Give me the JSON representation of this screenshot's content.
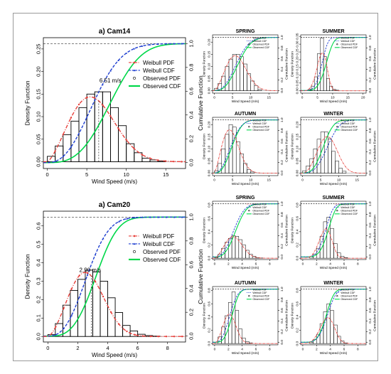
{
  "figure": {
    "border_color": "#9a9a9a"
  },
  "colors": {
    "weibull_pdf": "#e8413c",
    "weibull_cdf": "#1f3fd0",
    "observed_pdf": "#000000",
    "observed_cdf": "#00d84a",
    "bars": "#000000"
  },
  "chart_data": [
    {
      "id": "cam14",
      "type": "bar",
      "title": "a) Cam14",
      "xlabel": "Wind Speed (m/s)",
      "ylabel": "Density Function",
      "y2label": "Cumulative Function",
      "xlim": [
        -0.5,
        17.5
      ],
      "ylim": [
        -0.015,
        0.275
      ],
      "y2lim": [
        -0.05,
        1.05
      ],
      "xticks": [
        0,
        5,
        10,
        15
      ],
      "yticks": [
        0,
        0.05,
        0.1,
        0.15,
        0.2,
        0.25
      ],
      "y2ticks": [
        0,
        0.2,
        0.4,
        0.6,
        0.8,
        1.0
      ],
      "bins_x": [
        0,
        1,
        2,
        3,
        4,
        5,
        6,
        7,
        8,
        9,
        10,
        11,
        12,
        13,
        14
      ],
      "bins_y": [
        0.012,
        0.035,
        0.06,
        0.09,
        0.12,
        0.15,
        0.155,
        0.155,
        0.12,
        0.08,
        0.04,
        0.02,
        0.008,
        0.004,
        0.002
      ],
      "weibull_pdf": {
        "k": 2.4,
        "c": 6.8,
        "label": "Weibull PDF"
      },
      "weibull_cdf": {
        "k": 2.4,
        "c": 6.8,
        "label": "Weibull CDF"
      },
      "observed_cdf": {
        "k": 3.0,
        "c": 9.0,
        "label": "Observed CDF"
      },
      "observed_pdf_label": "Observed PDF",
      "annotation": {
        "text": "6.51 m/s",
        "x": 6.6,
        "y": 0.176
      },
      "mean_marker_x": 6.51,
      "dashed_line_y": 0.268,
      "legend_position": "right"
    },
    {
      "id": "cam20",
      "type": "bar",
      "title": "a) Cam20",
      "xlabel": "Wind Speed (m/s)",
      "ylabel": "Density Function",
      "y2label": "Cumulative Function",
      "xlim": [
        -0.3,
        9.2
      ],
      "ylim": [
        -0.03,
        0.68
      ],
      "y2lim": [
        -0.05,
        1.05
      ],
      "xticks": [
        0,
        2,
        4,
        6,
        8
      ],
      "yticks": [
        0,
        0.1,
        0.2,
        0.3,
        0.4,
        0.5,
        0.6
      ],
      "y2ticks": [
        0,
        0.2,
        0.4,
        0.6,
        0.8,
        1.0
      ],
      "bins_x": [
        0,
        0.5,
        1,
        1.5,
        2,
        2.5,
        3,
        3.5,
        4,
        4.5,
        5,
        5.5,
        6,
        6.5,
        7
      ],
      "bins_y": [
        0.01,
        0.07,
        0.17,
        0.25,
        0.31,
        0.36,
        0.35,
        0.3,
        0.21,
        0.13,
        0.06,
        0.03,
        0.012,
        0.005,
        0.002
      ],
      "weibull_pdf": {
        "k": 2.6,
        "c": 3.0,
        "label": "Weibull PDF"
      },
      "weibull_cdf": {
        "k": 2.6,
        "c": 3.0,
        "label": "Weibull CDF"
      },
      "observed_cdf": {
        "k": 3.2,
        "c": 3.6,
        "label": "Observed CDF"
      },
      "observed_pdf_label": "Observed PDF",
      "annotation": {
        "text": "2.90 m/s",
        "x": 2.1,
        "y": 0.35
      },
      "mean_marker_x": 2.9,
      "dashed_line_y": 0.648,
      "legend_position": "right"
    },
    {
      "id": "cam14-spring",
      "type": "bar",
      "title": "SPRING",
      "xlabel": "Wind Speed (m/s)",
      "ylabel": "Density Function",
      "y2label": "Cumulative Function",
      "xlim": [
        -0.5,
        17.5
      ],
      "ylim": [
        -0.01,
        0.23
      ],
      "y2lim": [
        -0.05,
        1.05
      ],
      "xticks": [
        0,
        5,
        10,
        15
      ],
      "yticks": [
        0,
        0.05,
        0.1,
        0.15,
        0.2
      ],
      "y2ticks": [
        0,
        0.2,
        0.4,
        0.6,
        0.8,
        1.0
      ],
      "bins_x": [
        0,
        1,
        2,
        3,
        4,
        5,
        6,
        7,
        8,
        9,
        10,
        11,
        12
      ],
      "bins_y": [
        0.01,
        0.03,
        0.06,
        0.1,
        0.13,
        0.15,
        0.15,
        0.14,
        0.11,
        0.07,
        0.04,
        0.02,
        0.005
      ],
      "weibull_pdf": {
        "k": 2.5,
        "c": 7.0
      },
      "weibull_cdf": {
        "k": 2.5,
        "c": 7.0
      },
      "observed_cdf": {
        "k": 2.7,
        "c": 7.5
      },
      "legend": [
        "Weibull PDF",
        "Weibull CDF",
        "Observed PDF",
        "Observed CDF"
      ]
    },
    {
      "id": "cam14-summer",
      "type": "bar",
      "title": "SUMMER",
      "xlabel": "Wind Speed (m/s)",
      "ylabel": "Density Function",
      "y2label": "Cumulative Function",
      "xlim": [
        -0.5,
        21
      ],
      "ylim": [
        -0.015,
        0.36
      ],
      "y2lim": [
        -0.05,
        1.05
      ],
      "xticks": [
        0,
        5,
        10,
        15,
        20
      ],
      "yticks": [
        0,
        0.05,
        0.1,
        0.15,
        0.2,
        0.25,
        0.3,
        0.35
      ],
      "y2ticks": [
        0,
        0.2,
        0.4,
        0.6,
        0.8,
        1.0
      ],
      "bins_x": [
        2,
        3,
        4,
        5,
        6,
        7,
        8,
        9,
        10,
        11
      ],
      "bins_y": [
        0.01,
        0.03,
        0.09,
        0.24,
        0.34,
        0.22,
        0.08,
        0.03,
        0.01,
        0.004
      ],
      "weibull_pdf": {
        "k": 4.5,
        "c": 7.0
      },
      "weibull_cdf": {
        "k": 4.5,
        "c": 7.0
      },
      "observed_cdf": {
        "k": 4.5,
        "c": 8.5
      },
      "legend": [
        "Weibull PDF",
        "Weibull CDF",
        "Observed PDF",
        "Observed CDF"
      ]
    },
    {
      "id": "cam14-autumn",
      "type": "bar",
      "title": "AUTUMN",
      "xlabel": "Wind Speed (m/s)",
      "ylabel": "Density Function",
      "y2label": "Cumulative Function",
      "xlim": [
        -0.5,
        17.5
      ],
      "ylim": [
        -0.01,
        0.23
      ],
      "y2lim": [
        -0.05,
        1.05
      ],
      "xticks": [
        0,
        5,
        10,
        15
      ],
      "yticks": [
        0,
        0.05,
        0.1,
        0.15,
        0.2
      ],
      "y2ticks": [
        0,
        0.2,
        0.4,
        0.6,
        0.8,
        1.0
      ],
      "bins_x": [
        0,
        1,
        2,
        3,
        4,
        5,
        6,
        7,
        8,
        9,
        10
      ],
      "bins_y": [
        0.01,
        0.04,
        0.1,
        0.16,
        0.2,
        0.19,
        0.13,
        0.08,
        0.04,
        0.015,
        0.005
      ],
      "weibull_pdf": {
        "k": 2.3,
        "c": 5.3
      },
      "weibull_cdf": {
        "k": 2.3,
        "c": 5.3
      },
      "observed_cdf": {
        "k": 2.6,
        "c": 5.6
      },
      "legend": [
        "Weibull PDF",
        "Weibull CDF",
        "Observed PDF",
        "Observed CDF"
      ]
    },
    {
      "id": "cam14-winter",
      "type": "bar",
      "title": "WINTER",
      "xlabel": "Wind Speed (m/s)",
      "ylabel": "Density Function",
      "y2label": "Cumulative Function",
      "xlim": [
        -0.5,
        17.5
      ],
      "ylim": [
        -0.01,
        0.23
      ],
      "y2lim": [
        -0.05,
        1.05
      ],
      "xticks": [
        0,
        5,
        10,
        15
      ],
      "yticks": [
        0,
        0.05,
        0.1,
        0.15,
        0.2
      ],
      "y2ticks": [
        0,
        0.2,
        0.4,
        0.6,
        0.8,
        1.0
      ],
      "bins_x": [
        0,
        1,
        2,
        3,
        4,
        5,
        6,
        7,
        8,
        9,
        10,
        11
      ],
      "bins_y": [
        0.01,
        0.03,
        0.06,
        0.1,
        0.14,
        0.17,
        0.17,
        0.14,
        0.09,
        0.05,
        0.02,
        0.008
      ],
      "weibull_pdf": {
        "k": 3.0,
        "c": 7.8
      },
      "weibull_cdf": {
        "k": 3.0,
        "c": 7.8
      },
      "observed_cdf": {
        "k": 3.0,
        "c": 6.5
      },
      "legend": [
        "Weibull PDF",
        "Weibull CDF",
        "Observed PDF",
        "Observed CDF"
      ]
    },
    {
      "id": "cam20-spring",
      "type": "bar",
      "title": "SPRING",
      "xlabel": "Wind Speed (m/s)",
      "ylabel": "Density Function",
      "y2label": "Cumulative Function",
      "xlim": [
        -0.3,
        9.2
      ],
      "ylim": [
        -0.02,
        0.86
      ],
      "y2lim": [
        -0.05,
        1.05
      ],
      "xticks": [
        0,
        2,
        4,
        6,
        8
      ],
      "yticks": [
        0,
        0.2,
        0.4,
        0.6,
        0.8
      ],
      "y2ticks": [
        0,
        0.2,
        0.4,
        0.6,
        0.8,
        1.0
      ],
      "bins_x": [
        0,
        0.5,
        1,
        1.5,
        2,
        2.5,
        3,
        3.5,
        4,
        4.5,
        5,
        5.5,
        6,
        6.5
      ],
      "bins_y": [
        0.01,
        0.06,
        0.15,
        0.24,
        0.3,
        0.34,
        0.33,
        0.28,
        0.2,
        0.12,
        0.06,
        0.03,
        0.01,
        0.004
      ],
      "weibull_pdf": {
        "k": 2.6,
        "c": 3.2
      },
      "weibull_cdf": {
        "k": 2.6,
        "c": 3.2
      },
      "observed_cdf": {
        "k": 2.9,
        "c": 3.5
      },
      "legend": [
        "Weibull PDF",
        "Weibull CDF",
        "Observed PDF",
        "Observed CDF"
      ]
    },
    {
      "id": "cam20-summer",
      "type": "bar",
      "title": "SUMMER",
      "xlabel": "Wind Speed (m/s)",
      "ylabel": "Density Function",
      "y2label": "Cumulative Function",
      "xlim": [
        -0.3,
        9.2
      ],
      "ylim": [
        -0.02,
        0.86
      ],
      "y2lim": [
        -0.05,
        1.05
      ],
      "xticks": [
        0,
        2,
        4,
        6,
        8
      ],
      "yticks": [
        0,
        0.2,
        0.4,
        0.6,
        0.8
      ],
      "y2ticks": [
        0,
        0.2,
        0.4,
        0.6,
        0.8,
        1.0
      ],
      "bins_x": [
        1,
        1.5,
        2,
        2.5,
        3,
        3.5,
        4,
        4.5,
        5,
        5.5,
        6
      ],
      "bins_y": [
        0.02,
        0.06,
        0.15,
        0.33,
        0.55,
        0.62,
        0.45,
        0.22,
        0.08,
        0.03,
        0.01
      ],
      "weibull_pdf": {
        "k": 4.2,
        "c": 3.6
      },
      "weibull_cdf": {
        "k": 4.2,
        "c": 3.6
      },
      "observed_cdf": {
        "k": 4.5,
        "c": 4.0
      },
      "legend": [
        "Weibull PDF",
        "Weibull CDF",
        "Observed PDF",
        "Observed CDF"
      ]
    },
    {
      "id": "cam20-autumn",
      "type": "bar",
      "title": "AUTUMN",
      "xlabel": "Wind Speed (m/s)",
      "ylabel": "Density Function",
      "y2label": "Cumulative Function",
      "xlim": [
        -0.3,
        9.2
      ],
      "ylim": [
        -0.02,
        0.86
      ],
      "y2lim": [
        -0.05,
        1.05
      ],
      "xticks": [
        0,
        2,
        4,
        6,
        8
      ],
      "yticks": [
        0,
        0.2,
        0.4,
        0.6,
        0.8
      ],
      "y2ticks": [
        0,
        0.2,
        0.4,
        0.6,
        0.8,
        1.0
      ],
      "bins_x": [
        0,
        0.5,
        1,
        1.5,
        2,
        2.5,
        3,
        3.5,
        4,
        4.5,
        5
      ],
      "bins_y": [
        0.02,
        0.1,
        0.25,
        0.42,
        0.62,
        0.78,
        0.5,
        0.22,
        0.08,
        0.03,
        0.01
      ],
      "weibull_pdf": {
        "k": 2.8,
        "c": 2.5
      },
      "weibull_cdf": {
        "k": 2.8,
        "c": 2.5
      },
      "observed_cdf": {
        "k": 3.5,
        "c": 2.8
      },
      "legend": [
        "Weibull PDF",
        "Weibull CDF",
        "Observed PDF",
        "Observed CDF"
      ]
    },
    {
      "id": "cam20-winter",
      "type": "bar",
      "title": "WINTER",
      "xlabel": "Wind Speed (m/s)",
      "ylabel": "Density Function",
      "y2label": "Cumulative Function",
      "xlim": [
        -0.3,
        9.2
      ],
      "ylim": [
        -0.02,
        0.86
      ],
      "y2lim": [
        -0.05,
        1.05
      ],
      "xticks": [
        0,
        2,
        4,
        6,
        8
      ],
      "yticks": [
        0,
        0.2,
        0.4,
        0.6,
        0.8
      ],
      "y2ticks": [
        0,
        0.2,
        0.4,
        0.6,
        0.8,
        1.0
      ],
      "bins_x": [
        1,
        1.5,
        2,
        2.5,
        3,
        3.5,
        4,
        4.5,
        5,
        5.5,
        6
      ],
      "bins_y": [
        0.02,
        0.06,
        0.14,
        0.3,
        0.48,
        0.6,
        0.5,
        0.28,
        0.11,
        0.04,
        0.01
      ],
      "weibull_pdf": {
        "k": 4.0,
        "c": 3.9
      },
      "weibull_cdf": {
        "k": 4.0,
        "c": 3.9
      },
      "observed_cdf": {
        "k": 4.2,
        "c": 3.7
      },
      "legend": [
        "Weibull PDF",
        "Weibull CDF",
        "Observed PDF",
        "Observed CDF"
      ]
    }
  ]
}
